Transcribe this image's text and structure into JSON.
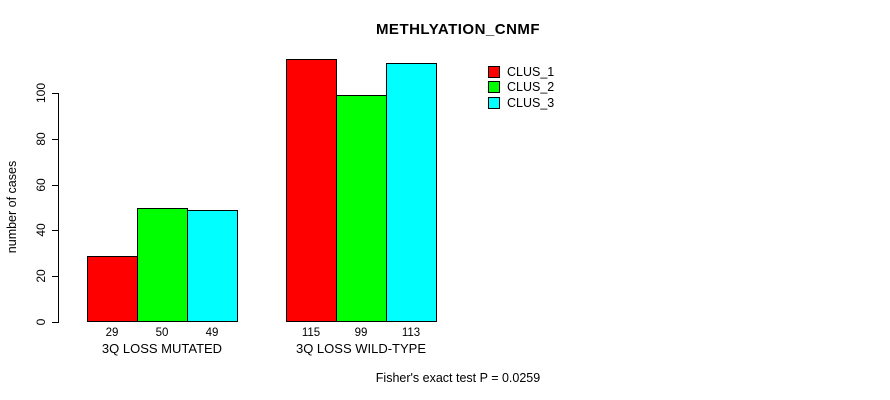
{
  "page": {
    "background_color": "#FFFFFF",
    "text_color": "#000000"
  },
  "chart_data": {
    "type": "bar",
    "title": "METHLYATION_CNMF",
    "xlabel": "",
    "ylabel": "number of cases",
    "categories": [
      "3Q LOSS MUTATED",
      "3Q LOSS WILD-TYPE"
    ],
    "series": [
      {
        "name": "CLUS_1",
        "color": "#FF0000",
        "values": [
          29,
          115
        ]
      },
      {
        "name": "CLUS_2",
        "color": "#00FF00",
        "values": [
          50,
          99
        ]
      },
      {
        "name": "CLUS_3",
        "color": "#00FFFF",
        "values": [
          49,
          113
        ]
      }
    ],
    "bar_value_labels": [
      [
        "29",
        "50",
        "49"
      ],
      [
        "115",
        "99",
        "113"
      ]
    ],
    "yticks": [
      0,
      20,
      40,
      60,
      80,
      100
    ],
    "ylim": [
      0,
      117
    ],
    "grid": false,
    "bar_border_color": "#000000",
    "legend_position": "top-right",
    "legend_entries": [
      {
        "label": "CLUS_1",
        "color": "#FF0000"
      },
      {
        "label": "CLUS_2",
        "color": "#00FF00"
      },
      {
        "label": "CLUS_3",
        "color": "#00FFFF"
      }
    ],
    "annotation": "Fisher's exact test P = 0.0259"
  }
}
